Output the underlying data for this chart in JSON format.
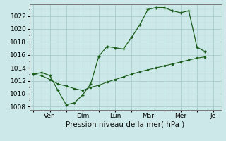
{
  "xlabel": "Pression niveau de la mer( hPa )",
  "background_color": "#cce8e8",
  "grid_major_color": "#aacccc",
  "grid_minor_color": "#bbdddd",
  "line_color": "#1a5c1a",
  "ylim": [
    1007.5,
    1023.8
  ],
  "yticks": [
    1008,
    1010,
    1012,
    1014,
    1016,
    1018,
    1020,
    1022
  ],
  "xtick_labels": [
    "",
    "Ven",
    "",
    "Dim",
    "",
    "Lun",
    "",
    "Mar",
    "",
    "Mer",
    "",
    "Je"
  ],
  "xtick_positions": [
    0,
    2,
    4,
    6,
    8,
    10,
    12,
    14,
    16,
    18,
    20,
    22
  ],
  "xlim": [
    -0.5,
    23.0
  ],
  "line1_x": [
    0,
    1,
    2,
    3,
    4,
    5,
    6,
    7,
    8,
    9,
    10,
    11,
    12,
    13,
    14,
    15,
    16,
    17,
    18,
    19,
    20,
    21
  ],
  "line1_y": [
    1013.0,
    1013.3,
    1012.8,
    1010.5,
    1008.3,
    1008.6,
    1009.8,
    1011.5,
    1015.8,
    1017.3,
    1017.1,
    1016.9,
    1018.7,
    1020.6,
    1023.0,
    1023.3,
    1023.3,
    1022.8,
    1022.5,
    1022.8,
    1017.2,
    1016.5
  ],
  "line2_x": [
    0,
    1,
    2,
    3,
    4,
    5,
    6,
    7,
    8,
    9,
    10,
    11,
    12,
    13,
    14,
    15,
    16,
    17,
    18,
    19,
    20,
    21
  ],
  "line2_y": [
    1013.0,
    1012.8,
    1012.2,
    1011.5,
    1011.2,
    1010.8,
    1010.5,
    1011.0,
    1011.3,
    1011.8,
    1012.2,
    1012.6,
    1013.0,
    1013.4,
    1013.7,
    1014.0,
    1014.3,
    1014.6,
    1014.9,
    1015.2,
    1015.5,
    1015.7
  ]
}
